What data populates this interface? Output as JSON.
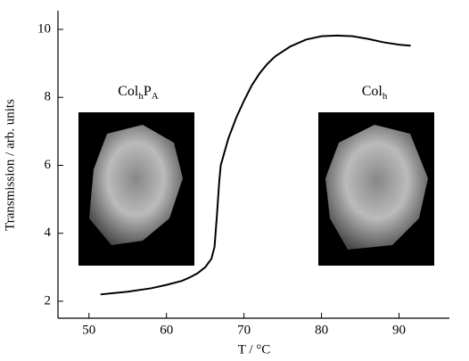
{
  "chart_data": {
    "type": "line",
    "x_label": "T / °C",
    "y_label": "Transmission / arb. units",
    "x": [
      51.5,
      55,
      58,
      60,
      62,
      63,
      64,
      65,
      65.8,
      66.2,
      66.5,
      66.8,
      67,
      68,
      69,
      70,
      71,
      72,
      73,
      74,
      76,
      78,
      80,
      82,
      84,
      86,
      88,
      90,
      91.5
    ],
    "series": [
      {
        "color": "#000000",
        "values": [
          2.2,
          2.28,
          2.38,
          2.48,
          2.6,
          2.7,
          2.82,
          3.0,
          3.25,
          3.6,
          4.5,
          5.5,
          6.0,
          6.8,
          7.4,
          7.9,
          8.35,
          8.7,
          8.98,
          9.2,
          9.5,
          9.7,
          9.8,
          9.82,
          9.8,
          9.72,
          9.62,
          9.55,
          9.52
        ]
      }
    ],
    "xlim": [
      46,
      96.5
    ],
    "ylim": [
      1.5,
      10.55
    ],
    "xticks": [
      50,
      60,
      70,
      80,
      90
    ],
    "yticks": [
      2,
      4,
      6,
      8,
      10
    ],
    "annotations": [
      {
        "parts": [
          "Col",
          "h",
          "P",
          "A"
        ]
      },
      {
        "parts": [
          "Col",
          "h"
        ]
      }
    ]
  }
}
